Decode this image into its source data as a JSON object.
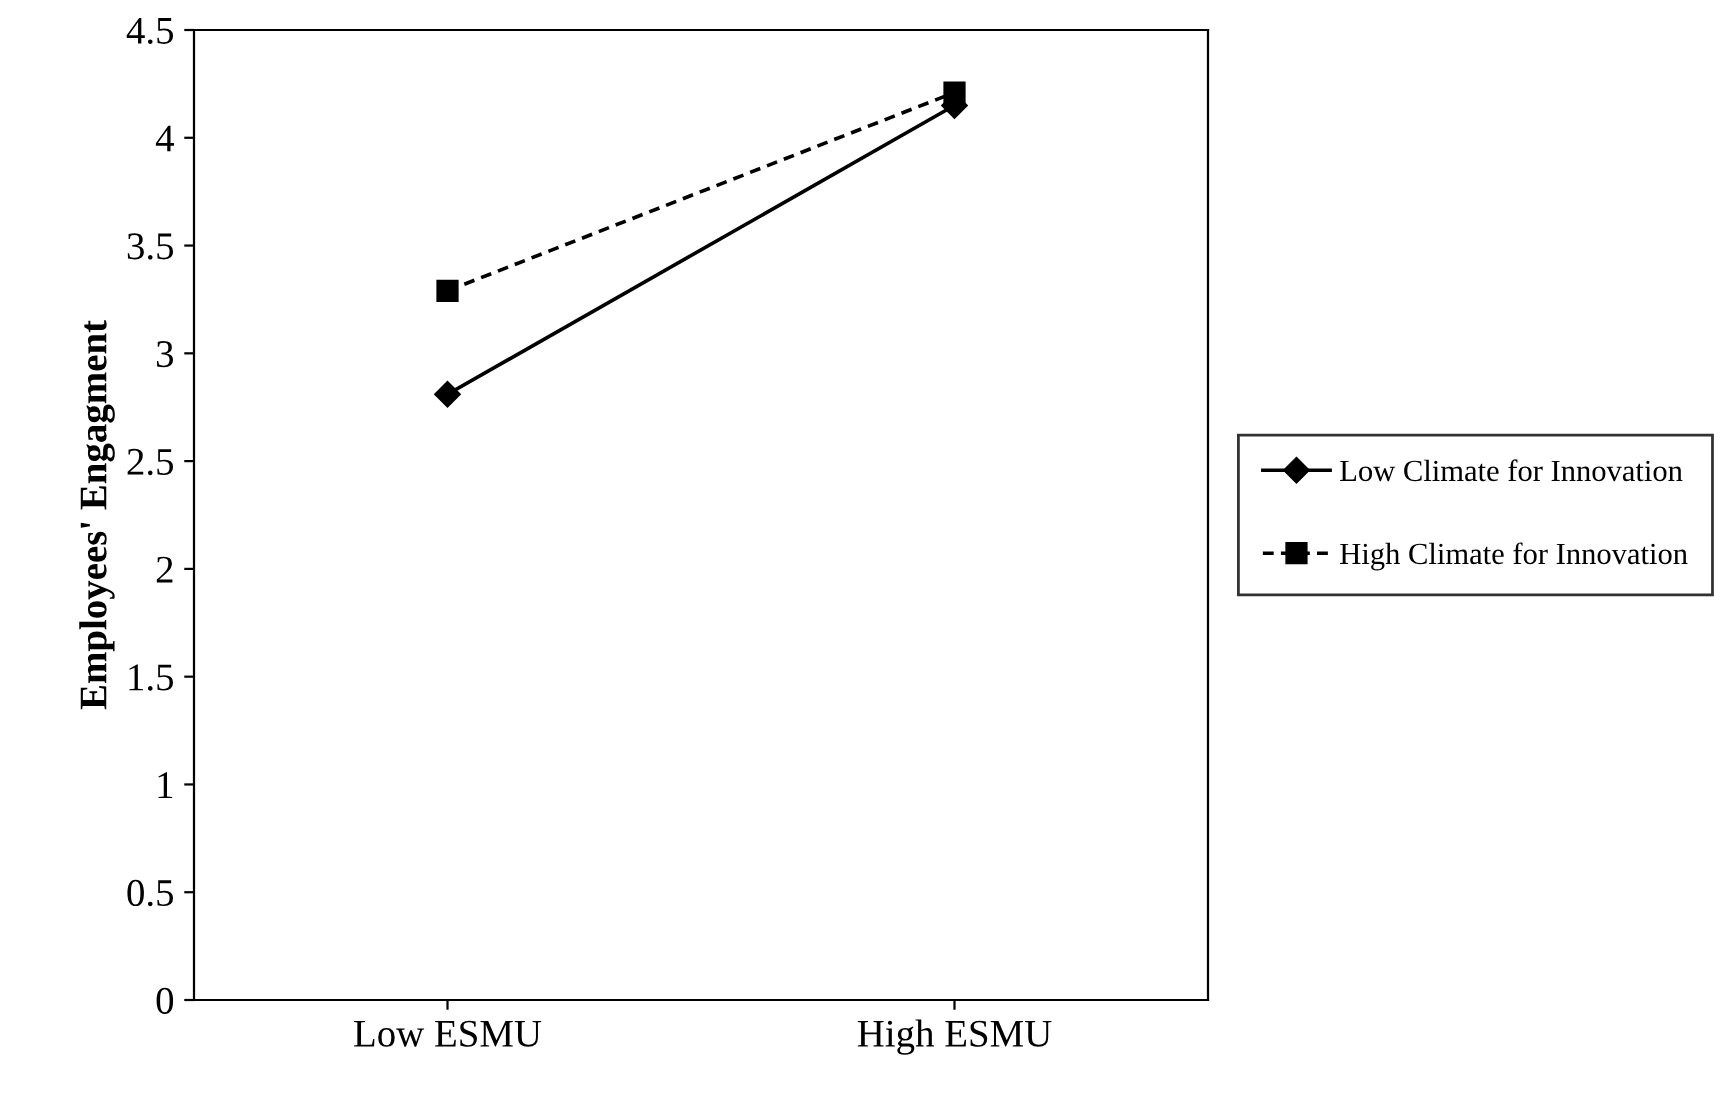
{
  "chart_data": {
    "type": "line",
    "ylabel": "Employees' Engagment",
    "categories": [
      "Low ESMU",
      "High ESMU"
    ],
    "series": [
      {
        "name": "Low Climate for Innovation",
        "color": "#000000",
        "values": [
          2.81,
          4.15
        ],
        "marker": "diamond",
        "line_style": "solid"
      },
      {
        "name": "High Climate for Innovation",
        "color": "#000000",
        "values": [
          3.29,
          4.21
        ],
        "marker": "square",
        "line_style": "dashed"
      }
    ],
    "ylim": [
      0,
      4.5
    ],
    "yticks": [
      0,
      0.5,
      1,
      1.5,
      2,
      2.5,
      3,
      3.5,
      4,
      4.5
    ],
    "grid": false,
    "legend": "right"
  }
}
